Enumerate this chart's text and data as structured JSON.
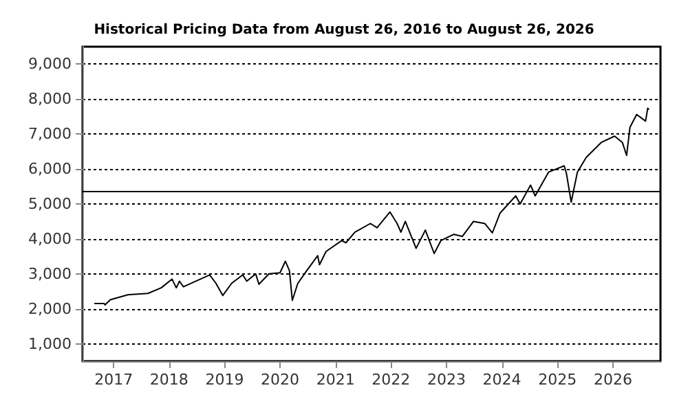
{
  "chart_data": {
    "type": "line",
    "title": "Historical Pricing Data from August 26, 2016 to August 26, 2026",
    "x": [
      "2016-08-26",
      "2016-10-30",
      "2016-11-05",
      "2016-12-10",
      "2017-04-05",
      "2017-08-15",
      "2017-11-10",
      "2018-01-20",
      "2018-02-17",
      "2018-03-10",
      "2018-04-05",
      "2018-09-25",
      "2018-11-05",
      "2018-12-20",
      "2019-02-17",
      "2019-05-01",
      "2019-05-27",
      "2019-07-25",
      "2019-08-15",
      "2019-10-20",
      "2020-01-01",
      "2020-02-05",
      "2020-03-03",
      "2020-03-22",
      "2020-04-27",
      "2020-06-25",
      "2020-09-05",
      "2020-09-17",
      "2020-10-30",
      "2021-02-10",
      "2021-03-10",
      "2021-05-08",
      "2021-08-18",
      "2021-10-01",
      "2021-12-25",
      "2022-02-10",
      "2022-03-07",
      "2022-04-05",
      "2022-06-15",
      "2022-08-15",
      "2022-10-12",
      "2022-11-25",
      "2023-02-17",
      "2023-04-15",
      "2023-06-28",
      "2023-09-10",
      "2023-10-30",
      "2023-12-20",
      "2024-04-01",
      "2024-04-30",
      "2024-07-08",
      "2024-08-07",
      "2024-11-03",
      "2025-02-14",
      "2025-03-01",
      "2025-04-01",
      "2025-05-12",
      "2025-07-09",
      "2025-10-16",
      "2026-01-12",
      "2026-03-04",
      "2026-04-01",
      "2026-04-23",
      "2026-06-06",
      "2026-08-04",
      "2026-08-18",
      "2026-08-26"
    ],
    "series": [
      {
        "color": "#000000",
        "values": [
          2150,
          2150,
          2110,
          2260,
          2400,
          2440,
          2600,
          2850,
          2600,
          2790,
          2630,
          2970,
          2730,
          2380,
          2730,
          2970,
          2790,
          3000,
          2700,
          3000,
          3030,
          3360,
          3090,
          2240,
          2725,
          3090,
          3520,
          3260,
          3640,
          3950,
          3890,
          4190,
          4440,
          4320,
          4770,
          4440,
          4190,
          4500,
          3730,
          4250,
          3580,
          3950,
          4130,
          4070,
          4500,
          4440,
          4170,
          4740,
          5230,
          5000,
          5540,
          5230,
          5910,
          6090,
          5870,
          5050,
          5910,
          6330,
          6760,
          6940,
          6760,
          6390,
          7190,
          7560,
          7370,
          7740,
          7700
        ]
      }
    ],
    "xlim": [
      "2016-06-10",
      "2026-11-10"
    ],
    "xticks": [
      {
        "value": "2017",
        "label": "2017"
      },
      {
        "value": "2018",
        "label": "2018"
      },
      {
        "value": "2019",
        "label": "2019"
      },
      {
        "value": "2020",
        "label": "2020"
      },
      {
        "value": "2021",
        "label": "2021"
      },
      {
        "value": "2022",
        "label": "2022"
      },
      {
        "value": "2023",
        "label": "2023"
      },
      {
        "value": "2024",
        "label": "2024"
      },
      {
        "value": "2025",
        "label": "2025"
      },
      {
        "value": "2026",
        "label": "2026"
      }
    ],
    "ylim": [
      500,
      9500
    ],
    "yticks": [
      {
        "value": 1000,
        "label": "1,000"
      },
      {
        "value": 2000,
        "label": "2,000"
      },
      {
        "value": 3000,
        "label": "3,000"
      },
      {
        "value": 4000,
        "label": "4,000"
      },
      {
        "value": 5000,
        "label": "5,000"
      },
      {
        "value": 6000,
        "label": "6,000"
      },
      {
        "value": 7000,
        "label": "7,000"
      },
      {
        "value": 8000,
        "label": "8,000"
      },
      {
        "value": 9000,
        "label": "9,000"
      }
    ],
    "ref_lines": [
      {
        "axis": "y",
        "value": 5370,
        "color": "#000000",
        "line_style": "solid"
      }
    ],
    "grid": "y",
    "marker": "none",
    "line_style": "solid"
  }
}
